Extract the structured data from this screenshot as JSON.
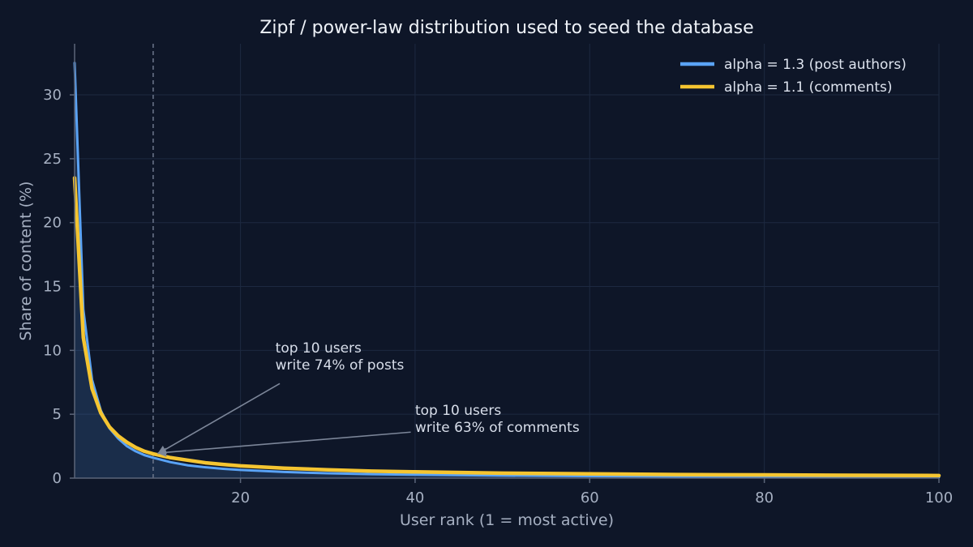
{
  "chart_data": {
    "type": "line",
    "title": "Zipf / power-law distribution used to seed the database",
    "xlabel": "User rank (1 = most active)",
    "ylabel": "Share of content (%)",
    "xlim": [
      1,
      100
    ],
    "ylim": [
      0,
      34
    ],
    "xticks": [
      20,
      40,
      60,
      80,
      100
    ],
    "yticks": [
      0,
      5,
      10,
      15,
      20,
      25,
      30
    ],
    "grid": true,
    "legend_position": "top-right",
    "series": [
      {
        "name": "alpha = 1.3 (post authors)",
        "color": "#5aa3f5",
        "area_fill": true,
        "x": [
          1,
          2,
          3,
          4,
          5,
          6,
          7,
          8,
          9,
          10,
          12,
          14,
          16,
          18,
          20,
          25,
          30,
          35,
          40,
          50,
          60,
          70,
          80,
          90,
          100
        ],
        "y": [
          32.5,
          13.2,
          7.7,
          5.3,
          3.9,
          3.1,
          2.5,
          2.1,
          1.8,
          1.6,
          1.25,
          1.0,
          0.85,
          0.73,
          0.64,
          0.48,
          0.38,
          0.31,
          0.27,
          0.2,
          0.16,
          0.13,
          0.11,
          0.1,
          0.08
        ]
      },
      {
        "name": "alpha = 1.1 (comments)",
        "color": "#f5c531",
        "area_fill": false,
        "x": [
          1,
          2,
          3,
          4,
          5,
          6,
          7,
          8,
          9,
          10,
          12,
          14,
          16,
          18,
          20,
          25,
          30,
          35,
          40,
          50,
          60,
          70,
          80,
          90,
          100
        ],
        "y": [
          23.5,
          11.0,
          7.0,
          5.1,
          4.0,
          3.3,
          2.8,
          2.4,
          2.1,
          1.9,
          1.6,
          1.4,
          1.2,
          1.07,
          0.96,
          0.78,
          0.65,
          0.55,
          0.49,
          0.39,
          0.33,
          0.28,
          0.25,
          0.22,
          0.2
        ]
      }
    ],
    "reference_line": {
      "x": 10
    },
    "annotations": [
      {
        "lines": [
          "top 10 users",
          "write 74% of posts"
        ],
        "text_at": [
          24,
          8.5
        ],
        "arrow_from": [
          24.5,
          7.4
        ],
        "point": [
          10,
          1.85
        ]
      },
      {
        "lines": [
          "top 10 users",
          "write 63% of comments"
        ],
        "text_at": [
          40,
          3.6
        ],
        "arrow_from": [
          39.5,
          3.6
        ],
        "point": [
          10,
          1.9
        ]
      }
    ]
  }
}
